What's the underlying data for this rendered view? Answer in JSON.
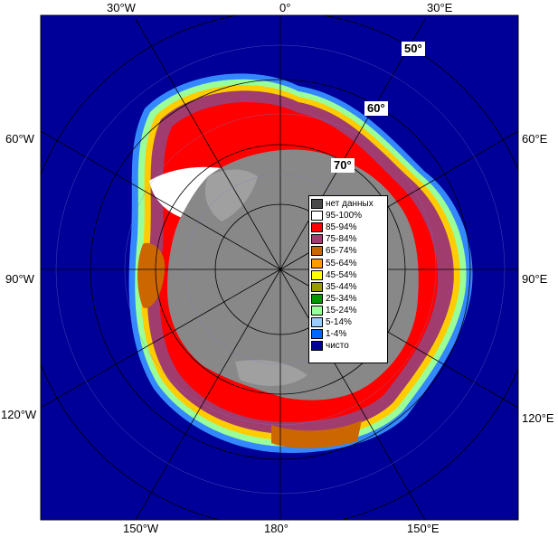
{
  "meridian_labels": {
    "top_30w": "30°W",
    "top_0": "0°",
    "top_30e": "30°E",
    "left_60w": "60°W",
    "left_90w": "90°W",
    "left_120w": "120°W",
    "right_60e": "60°E",
    "right_90e": "90°E",
    "right_120e": "120°E",
    "bottom_150w": "150°W",
    "bottom_180": "180°",
    "bottom_150e": "150°E"
  },
  "latitude_labels": {
    "lat50": "50°",
    "lat60": "60°",
    "lat70": "70°"
  },
  "legend": {
    "items": [
      {
        "label": "нет данных",
        "color": "#4a4a4a"
      },
      {
        "label": "95-100%",
        "color": "#ffffff"
      },
      {
        "label": "85-94%",
        "color": "#ff0000"
      },
      {
        "label": "75-84%",
        "color": "#a03c6e"
      },
      {
        "label": "65-74%",
        "color": "#cc6600"
      },
      {
        "label": "55-64%",
        "color": "#ff9900"
      },
      {
        "label": "45-54%",
        "color": "#ffff00"
      },
      {
        "label": "35-44%",
        "color": "#999900"
      },
      {
        "label": "25-34%",
        "color": "#009900"
      },
      {
        "label": "15-24%",
        "color": "#99ff99"
      },
      {
        "label": "5-14%",
        "color": "#99ccff"
      },
      {
        "label": "1-4%",
        "color": "#0066ff"
      },
      {
        "label": "чисто",
        "color": "#000099"
      }
    ]
  },
  "colors": {
    "ocean": "#000099",
    "land": "#888888",
    "ice_shelf": "#a0a0a0"
  }
}
